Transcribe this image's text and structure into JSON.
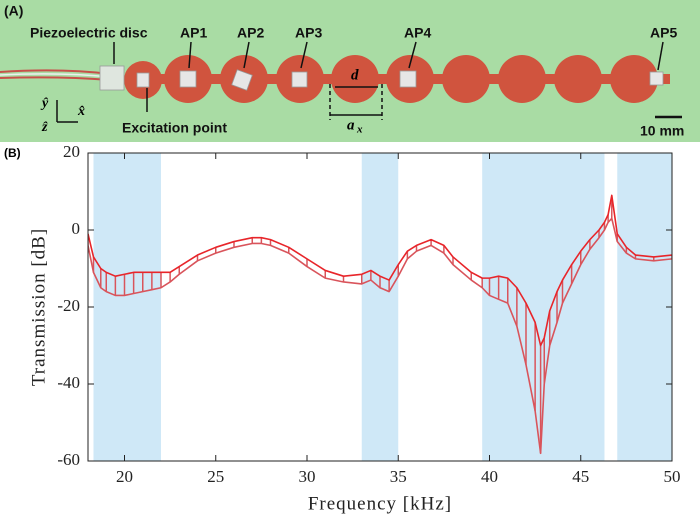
{
  "photo": {
    "panel_label": "(A)",
    "piezo": "Piezoelectric disc",
    "excitation": "Excitation point",
    "aps": [
      "AP1",
      "AP2",
      "AP3",
      "AP4",
      "AP5"
    ],
    "d": "d",
    "a": {
      "symbol": "a",
      "subscript": "x"
    },
    "axes": {
      "y": "ŷ",
      "x": "x̂",
      "z": "ẑ"
    },
    "scale": "10 mm"
  },
  "chart_data": {
    "type": "line",
    "panel_label": "(B)",
    "xlabel": "Frequency [kHz]",
    "ylabel": "Transmission [dB]",
    "xlim": [
      18,
      50
    ],
    "ylim": [
      -60,
      20
    ],
    "xticks": [
      20,
      25,
      30,
      35,
      40,
      45,
      50
    ],
    "yticks": [
      -60,
      -40,
      -20,
      0,
      20
    ],
    "bands": [
      [
        18.3,
        22
      ],
      [
        33,
        35
      ],
      [
        39.6,
        46.3
      ],
      [
        47,
        50
      ]
    ],
    "band_color": "#cfe8f7",
    "x": [
      18,
      18.3,
      18.7,
      19,
      19.5,
      20,
      20.5,
      21,
      21.5,
      22,
      22.5,
      23,
      24,
      25,
      26,
      27,
      27.5,
      28,
      29,
      30,
      31,
      32,
      33,
      33.5,
      34,
      34.5,
      35,
      35.5,
      36,
      36.8,
      37.5,
      38,
      39,
      39.6,
      40,
      40.5,
      41,
      41.5,
      42,
      42.5,
      42.8,
      43,
      43.3,
      43.7,
      44,
      44.5,
      45,
      45.5,
      46,
      46.3,
      46.5,
      46.7,
      47,
      47.5,
      48,
      49,
      50
    ],
    "series": [
      {
        "color": "#e8252a",
        "values": [
          -1,
          -7,
          -10,
          -11,
          -12,
          -11.5,
          -11,
          -11,
          -11,
          -11,
          -11,
          -9.5,
          -6.5,
          -4.5,
          -3,
          -2,
          -2,
          -2.5,
          -4.5,
          -7.5,
          -10.5,
          -12,
          -11.5,
          -10.5,
          -12,
          -13,
          -9,
          -5.5,
          -4,
          -2.5,
          -4,
          -7,
          -11,
          -12.5,
          -12.5,
          -12,
          -12.5,
          -15,
          -19,
          -24,
          -30,
          -28,
          -21,
          -16,
          -13,
          -9,
          -5.5,
          -2.5,
          0,
          2,
          4,
          9,
          -1,
          -4.5,
          -6.5,
          -7,
          -6.5
        ]
      },
      {
        "color": "#d9545b",
        "values": [
          -4,
          -11,
          -15,
          -16,
          -17,
          -17,
          -16.5,
          -16,
          -15.5,
          -15,
          -13.5,
          -11.5,
          -8,
          -6,
          -4.5,
          -3.5,
          -3.5,
          -4,
          -6,
          -9.5,
          -12.5,
          -13.5,
          -14,
          -13,
          -15,
          -16,
          -12,
          -7.5,
          -5.5,
          -4,
          -6,
          -9,
          -13,
          -15,
          -17,
          -18,
          -19,
          -25,
          -35,
          -47,
          -58,
          -40,
          -30,
          -24,
          -19,
          -14,
          -9,
          -5,
          -2,
          0,
          2,
          3,
          -3,
          -6,
          -7.5,
          -8,
          -7.5
        ]
      }
    ]
  }
}
